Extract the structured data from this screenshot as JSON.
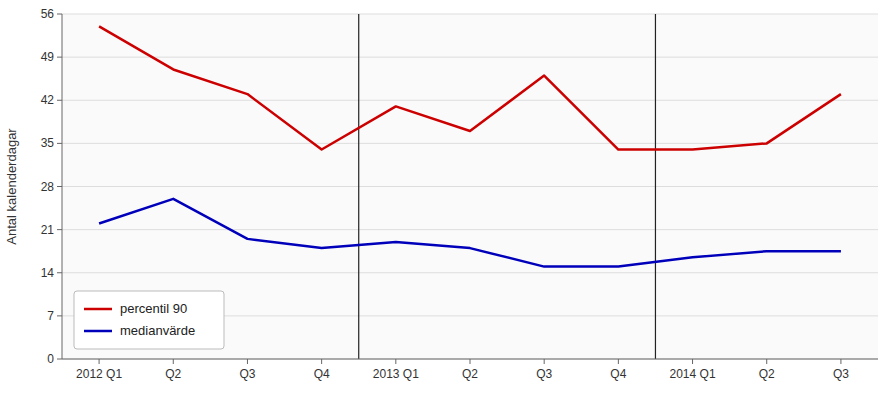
{
  "chart_data": {
    "type": "line",
    "y_label": "Antal kalenderdagar",
    "categories": [
      "2012 Q1",
      "Q2",
      "Q3",
      "Q4",
      "2013 Q1",
      "Q2",
      "Q3",
      "Q4",
      "2014 Q1",
      "Q2",
      "Q3"
    ],
    "series": [
      {
        "name": "percentil 90",
        "color": "#cc0000",
        "values": [
          54,
          47,
          43,
          34,
          41,
          37,
          46,
          34,
          34,
          35,
          43
        ]
      },
      {
        "name": "medianvärde",
        "color": "#0000bb",
        "values": [
          22,
          26,
          19.5,
          18,
          19,
          18,
          15,
          15,
          16.5,
          17.5,
          17.5
        ]
      }
    ],
    "ylim": [
      0,
      56
    ],
    "yticks": [
      0,
      7,
      14,
      21,
      28,
      35,
      42,
      49,
      56
    ],
    "grid": true,
    "legend": "lower left"
  }
}
